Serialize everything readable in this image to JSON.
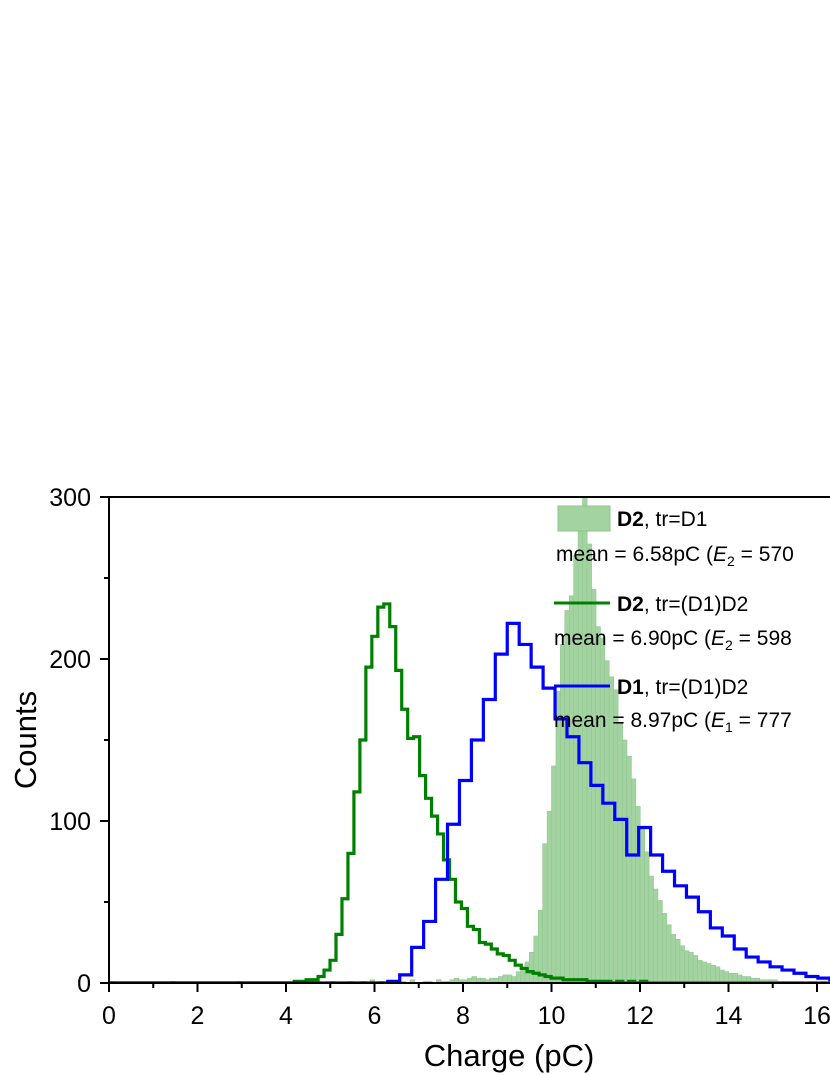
{
  "chart_data": {
    "type": "histogram",
    "xlabel": "Charge (pC)",
    "ylabel": "Counts",
    "xlim": [
      0,
      16.3
    ],
    "ylim": [
      0,
      300
    ],
    "x_ticks": [
      "0",
      "2",
      "4",
      "6",
      "8",
      "10",
      "12",
      "14",
      "16"
    ],
    "y_ticks": [
      "0",
      "100",
      "200",
      "300"
    ],
    "series": [
      {
        "name": "D2",
        "name_suffix": ", tr=D1",
        "stat_line": "mean = 6.58pC (",
        "stat_sym": "E",
        "stat_sub": "2",
        "stat_rest": " = 570",
        "style": "filled",
        "color": "#a4d3a2",
        "edge_color": "#8cc48a",
        "bin_width": 0.1,
        "bin_start": 0.0,
        "values": [
          1,
          0,
          0,
          0,
          0,
          0,
          0,
          0,
          0,
          0,
          0,
          0,
          0,
          0,
          1,
          0,
          0,
          0,
          0,
          0,
          0,
          0,
          0,
          0,
          0,
          0,
          0,
          0,
          0,
          1,
          0,
          0,
          0,
          0,
          0,
          0,
          0,
          0,
          0,
          0,
          0,
          0,
          0,
          0,
          0,
          1,
          0,
          0,
          0,
          0,
          1,
          0,
          0,
          0,
          1,
          0,
          0,
          1,
          0,
          2,
          0,
          1,
          0,
          1,
          0,
          0,
          1,
          0,
          2,
          0,
          0,
          1,
          1,
          0,
          2,
          1,
          1,
          2,
          3,
          2,
          2,
          3,
          4,
          3,
          3,
          2,
          3,
          3,
          4,
          5,
          5,
          4,
          7,
          10,
          13,
          19,
          29,
          45,
          86,
          106,
          134,
          180,
          209,
          230,
          239,
          264,
          287,
          300,
          271,
          243,
          220,
          213,
          199,
          189,
          181,
          160,
          150,
          140,
          126,
          109,
          96,
          81,
          66,
          58,
          51,
          43,
          36,
          30,
          27,
          23,
          20,
          19,
          17,
          14,
          13,
          12,
          11,
          10,
          8,
          7,
          6,
          6,
          5,
          4,
          4,
          3,
          3,
          2,
          2,
          2,
          2,
          1,
          1,
          1,
          1,
          1,
          1,
          0,
          1,
          1,
          0,
          1,
          0,
          0,
          1,
          0,
          1,
          0,
          0,
          0
        ]
      },
      {
        "name": "D2",
        "name_suffix": ", tr=(D1)D2",
        "stat_line": "mean  = 6.90pC (",
        "stat_sym": "E",
        "stat_sub": "2",
        "stat_rest": " = 598",
        "style": "step",
        "color": "#008000",
        "bin_width": 0.135,
        "bin_start": 4.05,
        "values": [
          0,
          1,
          1,
          2,
          2,
          4,
          8,
          14,
          30,
          52,
          80,
          118,
          150,
          195,
          214,
          232,
          234,
          220,
          193,
          169,
          151,
          152,
          128,
          114,
          103,
          92,
          76,
          64,
          50,
          46,
          35,
          33,
          25,
          24,
          21,
          18,
          17,
          14,
          11,
          9,
          7,
          6,
          5,
          4,
          3,
          3,
          2,
          2,
          2,
          2,
          1,
          1,
          1,
          1,
          0,
          1,
          0,
          1,
          0,
          1,
          0,
          0,
          0
        ]
      },
      {
        "name": "D1",
        "name_suffix": ", tr=(D1)D2",
        "stat_line": "mean  = 8.97pC (",
        "stat_sym": "E",
        "stat_sub": "1",
        "stat_rest": " = 777",
        "style": "step",
        "color": "#0000ff",
        "bin_width": 0.27,
        "bin_start": 6.3,
        "values": [
          1,
          5,
          22,
          38,
          64,
          98,
          125,
          150,
          175,
          203,
          222,
          209,
          195,
          182,
          163,
          152,
          136,
          122,
          111,
          101,
          79,
          96,
          79,
          69,
          60,
          53,
          44,
          34,
          29,
          21,
          16,
          13,
          10,
          8,
          6,
          4,
          3,
          2,
          2,
          1,
          1,
          1,
          2,
          1,
          0,
          0
        ]
      }
    ]
  }
}
